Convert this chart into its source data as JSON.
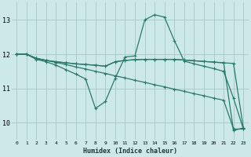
{
  "xlabel": "Humidex (Indice chaleur)",
  "ylabel": "",
  "bg_color": "#cce8e8",
  "grid_color": "#aacccc",
  "line_color": "#2a7a6a",
  "x_values": [
    0,
    1,
    2,
    3,
    4,
    5,
    6,
    7,
    8,
    9,
    10,
    11,
    12,
    13,
    14,
    15,
    16,
    17,
    18,
    19,
    20,
    21,
    22,
    23
  ],
  "series1": [
    12.0,
    12.0,
    11.85,
    11.78,
    11.68,
    11.55,
    11.42,
    11.28,
    10.42,
    10.62,
    11.3,
    11.92,
    11.95,
    13.0,
    13.15,
    13.08,
    12.4,
    11.8,
    11.72,
    11.65,
    11.58,
    11.5,
    10.72,
    9.82
  ],
  "series2": [
    12.0,
    12.0,
    11.88,
    11.82,
    11.78,
    11.75,
    11.72,
    11.7,
    11.68,
    11.65,
    11.78,
    11.82,
    11.84,
    11.85,
    11.85,
    11.85,
    11.85,
    11.83,
    11.81,
    11.79,
    11.77,
    11.75,
    11.73,
    9.85
  ],
  "series3": [
    12.0,
    12.0,
    11.88,
    11.82,
    11.78,
    11.75,
    11.72,
    11.7,
    11.68,
    11.65,
    11.78,
    11.82,
    11.84,
    11.85,
    11.85,
    11.85,
    11.85,
    11.83,
    11.81,
    11.79,
    11.77,
    11.75,
    9.78,
    9.85
  ],
  "series4": [
    12.0,
    12.0,
    11.88,
    11.82,
    11.76,
    11.7,
    11.63,
    11.57,
    11.5,
    11.44,
    11.37,
    11.31,
    11.24,
    11.18,
    11.11,
    11.05,
    10.98,
    10.92,
    10.85,
    10.79,
    10.72,
    10.66,
    9.82,
    9.82
  ],
  "ylim": [
    9.5,
    13.5
  ],
  "xlim": [
    -0.5,
    23.5
  ],
  "yticks": [
    10,
    11,
    12,
    13
  ],
  "xticks": [
    0,
    1,
    2,
    3,
    4,
    5,
    6,
    7,
    8,
    9,
    10,
    11,
    12,
    13,
    14,
    15,
    16,
    17,
    18,
    19,
    20,
    21,
    22,
    23
  ]
}
